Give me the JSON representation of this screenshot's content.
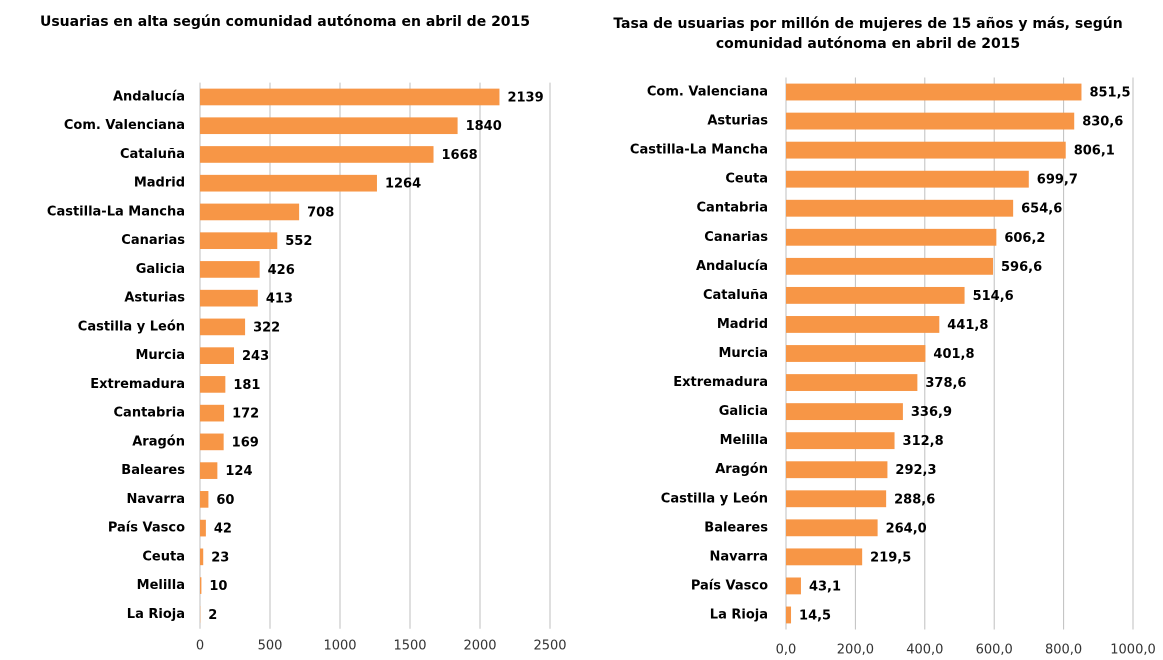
{
  "chart_data": [
    {
      "type": "bar",
      "orientation": "horizontal",
      "title": "Usuarias en alta según comunidad autónoma en abril de 2015",
      "categories": [
        "Andalucía",
        "Com. Valenciana",
        "Cataluña",
        "Madrid",
        "Castilla-La Mancha",
        "Canarias",
        "Galicia",
        "Asturias",
        "Castilla y León",
        "Murcia",
        "Extremadura",
        "Cantabria",
        "Aragón",
        "Baleares",
        "Navarra",
        "País Vasco",
        "Ceuta",
        "Melilla",
        "La Rioja"
      ],
      "values": [
        2139,
        1840,
        1668,
        1264,
        708,
        552,
        426,
        413,
        322,
        243,
        181,
        172,
        169,
        124,
        60,
        42,
        23,
        10,
        2
      ],
      "color": "#f79646",
      "xlim": [
        0,
        2500
      ],
      "xticks": [
        0,
        500,
        1000,
        1500,
        2000,
        2500
      ],
      "grid": true
    },
    {
      "type": "bar",
      "orientation": "horizontal",
      "title": "Tasa de usuarias por millón de mujeres de 15 años y más, según comunidad autónoma en abril de 2015",
      "categories": [
        "Com. Valenciana",
        "Asturias",
        "Castilla-La Mancha",
        "Ceuta",
        "Cantabria",
        "Canarias",
        "Andalucía",
        "Cataluña",
        "Madrid",
        "Murcia",
        "Extremadura",
        "Galicia",
        "Melilla",
        "Aragón",
        "Castilla y León",
        "Baleares",
        "Navarra",
        "País Vasco",
        "La Rioja"
      ],
      "values": [
        851.5,
        830.6,
        806.1,
        699.7,
        654.6,
        606.2,
        596.6,
        514.6,
        441.8,
        401.8,
        378.6,
        336.9,
        312.8,
        292.3,
        288.6,
        264.0,
        219.5,
        43.1,
        14.5
      ],
      "value_labels": [
        "851,5",
        "830,6",
        "806,1",
        "699,7",
        "654,6",
        "606,2",
        "596,6",
        "514,6",
        "441,8",
        "401,8",
        "378,6",
        "336,9",
        "312,8",
        "292,3",
        "288,6",
        "264,0",
        "219,5",
        "43,1",
        "14,5"
      ],
      "color": "#f79646",
      "xlim": [
        0,
        1000
      ],
      "xticks": [
        {
          "value": 0,
          "label": "0,0"
        },
        {
          "value": 200,
          "label": "200,0"
        },
        {
          "value": 400,
          "label": "400,0"
        },
        {
          "value": 600,
          "label": "600,0"
        },
        {
          "value": 800,
          "label": "800,0"
        },
        {
          "value": 1000,
          "label": "1000,0"
        }
      ],
      "grid": true
    }
  ]
}
